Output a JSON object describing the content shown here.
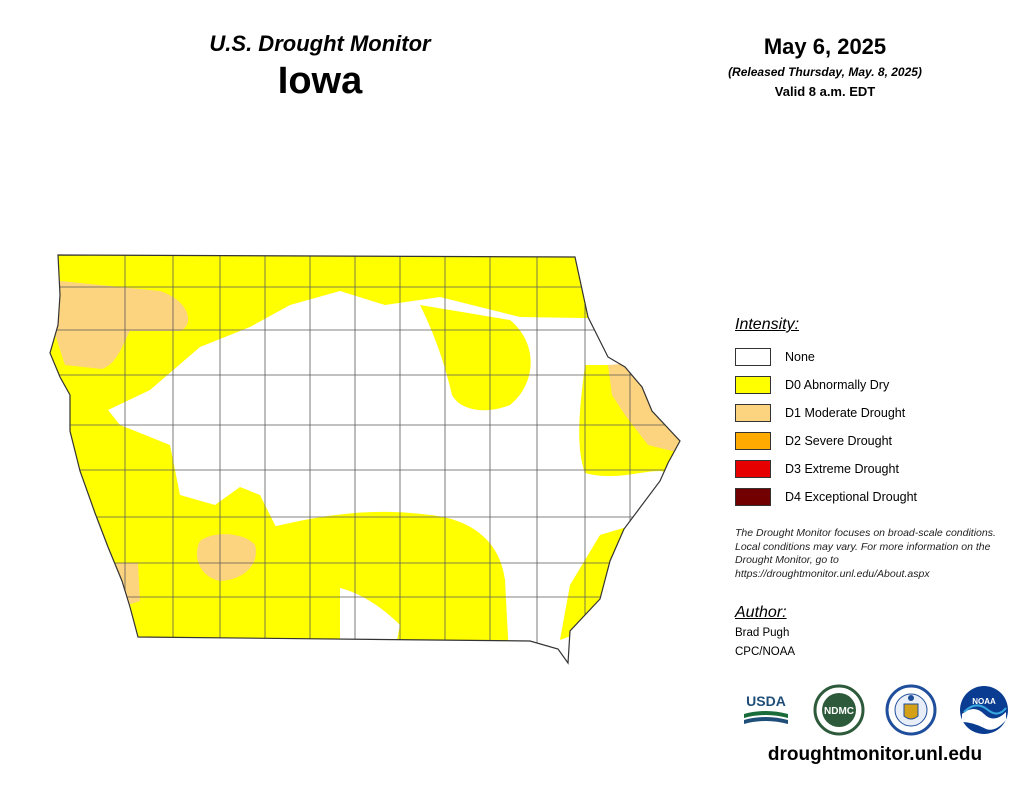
{
  "header": {
    "subtitle": "U.S. Drought Monitor",
    "state": "Iowa",
    "date": "May 6, 2025",
    "released": "(Released Thursday, May. 8, 2025)",
    "valid": "Valid 8 a.m. EDT"
  },
  "legend": {
    "title": "Intensity:",
    "items": [
      {
        "label": "None",
        "color": "#ffffff"
      },
      {
        "label": "D0 Abnormally Dry",
        "color": "#ffff00"
      },
      {
        "label": "D1 Moderate Drought",
        "color": "#fcd37f"
      },
      {
        "label": "D2 Severe Drought",
        "color": "#ffaa00"
      },
      {
        "label": "D3 Extreme Drought",
        "color": "#e60000"
      },
      {
        "label": "D4 Exceptional Drought",
        "color": "#730000"
      }
    ]
  },
  "note": "The Drought Monitor focuses on broad-scale conditions. Local conditions may vary. For more information on the Drought Monitor, go to https://droughtmonitor.unl.edu/About.aspx",
  "author": {
    "title": "Author:",
    "name": "Brad Pugh",
    "org": "CPC/NOAA"
  },
  "logos": [
    {
      "icon": "usda-logo",
      "text": "USDA"
    },
    {
      "icon": "ndmc-logo",
      "text": "NDMC"
    },
    {
      "icon": "doc-seal-logo",
      "text": ""
    },
    {
      "icon": "noaa-logo",
      "text": "NOAA"
    }
  ],
  "website": "droughtmonitor.unl.edu"
}
